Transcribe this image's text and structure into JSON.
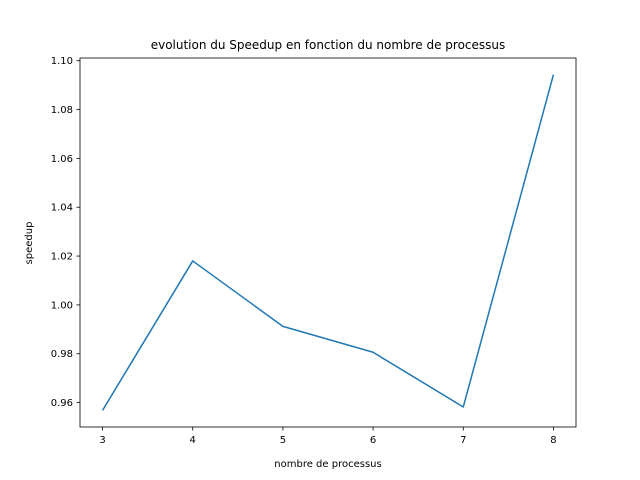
{
  "chart_data": {
    "type": "line",
    "title": "evolution du Speedup en fonction du nombre de processus",
    "xlabel": "nombre de processus",
    "ylabel": "speedup",
    "x": [
      3,
      4,
      5,
      6,
      7,
      8
    ],
    "series": [
      {
        "values": [
          0.9568,
          1.018,
          0.9912,
          0.9806,
          0.9582,
          1.0943
        ],
        "color": "#1f77b4"
      }
    ],
    "xlim": [
      2.75,
      8.25
    ],
    "ylim": [
      0.95,
      1.1011
    ],
    "x_ticks": [
      "3",
      "4",
      "5",
      "6",
      "7",
      "8"
    ],
    "y_ticks": [
      "0.96",
      "0.98",
      "1.00",
      "1.02",
      "1.04",
      "1.06",
      "1.08",
      "1.10"
    ],
    "grid": false,
    "legend": "none"
  }
}
